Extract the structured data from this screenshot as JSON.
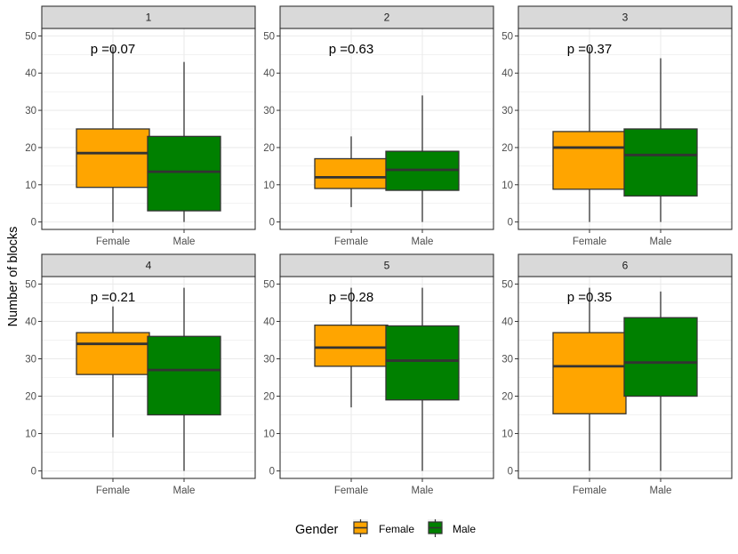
{
  "chart_data": {
    "type": "boxplot",
    "ylabel": "Number of blocks",
    "xlabel": "",
    "ylim": [
      -2,
      52
    ],
    "yticks": [
      0,
      10,
      20,
      30,
      40,
      50
    ],
    "categories": [
      "Female",
      "Male"
    ],
    "colors": {
      "Female": "#FFA500",
      "Male": "#008000",
      "strip_bg": "#D9D9D9",
      "grid": "#EBEBEB",
      "border": "#333333"
    },
    "legend": {
      "title": "Gender",
      "entries": [
        "Female",
        "Male"
      ],
      "position": "bottom"
    },
    "panels": [
      {
        "strip": "1",
        "annotation": "p =0.07",
        "boxes": [
          {
            "group": "Female",
            "min": 0,
            "q1": 9.3,
            "median": 18.5,
            "q3": 25,
            "max": 47
          },
          {
            "group": "Male",
            "min": 0,
            "q1": 3,
            "median": 13.5,
            "q3": 23,
            "max": 43
          }
        ]
      },
      {
        "strip": "2",
        "annotation": "p =0.63",
        "boxes": [
          {
            "group": "Female",
            "min": 4,
            "q1": 9,
            "median": 12,
            "q3": 17,
            "max": 23
          },
          {
            "group": "Male",
            "min": 0,
            "q1": 8.5,
            "median": 14,
            "q3": 19,
            "max": 34
          }
        ]
      },
      {
        "strip": "3",
        "annotation": "p =0.37",
        "boxes": [
          {
            "group": "Female",
            "min": 0,
            "q1": 8.8,
            "median": 20,
            "q3": 24.3,
            "max": 47
          },
          {
            "group": "Male",
            "min": 0,
            "q1": 7,
            "median": 18,
            "q3": 25,
            "max": 44
          }
        ]
      },
      {
        "strip": "4",
        "annotation": "p =0.21",
        "boxes": [
          {
            "group": "Female",
            "min": 9,
            "q1": 25.8,
            "median": 34,
            "q3": 37,
            "max": 44
          },
          {
            "group": "Male",
            "min": 0,
            "q1": 15,
            "median": 27,
            "q3": 36,
            "max": 49
          }
        ]
      },
      {
        "strip": "5",
        "annotation": "p =0.28",
        "boxes": [
          {
            "group": "Female",
            "min": 17,
            "q1": 28,
            "median": 33,
            "q3": 39,
            "max": 49
          },
          {
            "group": "Male",
            "min": 0,
            "q1": 19,
            "median": 29.5,
            "q3": 38.8,
            "max": 49
          }
        ]
      },
      {
        "strip": "6",
        "annotation": "p =0.35",
        "boxes": [
          {
            "group": "Female",
            "min": 0,
            "q1": 15.3,
            "median": 28,
            "q3": 37,
            "max": 49
          },
          {
            "group": "Male",
            "min": 0,
            "q1": 20,
            "median": 29,
            "q3": 41,
            "max": 48
          }
        ]
      }
    ]
  }
}
